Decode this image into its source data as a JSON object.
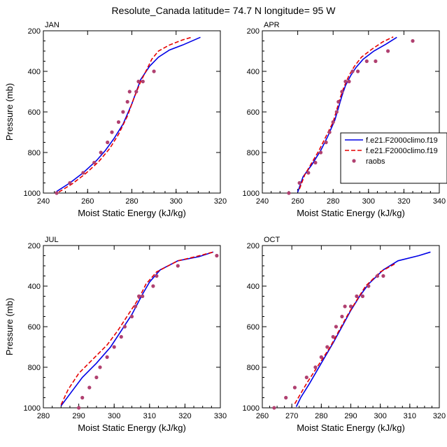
{
  "figure": {
    "title": "Resolute_Canada  latitude= 74.7 N longitude= 95 W",
    "colors": {
      "series_1": "#0000e6",
      "series_2": "#e60000",
      "raobs": "#b04070"
    }
  },
  "chart_data": [
    {
      "type": "line",
      "panel_label": "JAN",
      "xlabel": "Moist Static Energy (kJ/kg)",
      "ylabel": "Pressure (mb)",
      "xlim": [
        240,
        320
      ],
      "ylim": [
        1000,
        200
      ],
      "y_reversed": true,
      "xticks": [
        "240",
        "260",
        "280",
        "300",
        "320"
      ],
      "yticks": [
        "200",
        "400",
        "600",
        "800",
        "1000"
      ],
      "show_ylabel": true,
      "show_legend": false,
      "series": [
        {
          "style": "solid",
          "color": "#0000e6",
          "x": [
            246,
            252,
            258,
            264,
            268,
            272,
            276,
            280,
            284,
            288,
            292,
            297,
            303,
            311
          ],
          "y": [
            992,
            950,
            900,
            840,
            790,
            730,
            660,
            560,
            440,
            375,
            330,
            295,
            270,
            232
          ]
        },
        {
          "style": "dashed",
          "color": "#e60000",
          "x": [
            247,
            253,
            259,
            265,
            270,
            274,
            278,
            281,
            284,
            287,
            289,
            292,
            297,
            303,
            307
          ],
          "y": [
            995,
            955,
            905,
            845,
            780,
            710,
            620,
            530,
            450,
            385,
            340,
            300,
            270,
            245,
            232
          ]
        }
      ],
      "points": {
        "x": [
          246,
          252,
          258,
          263,
          266,
          269,
          271,
          274,
          276,
          278,
          279,
          282,
          283,
          285,
          290
        ],
        "y": [
          1000,
          950,
          900,
          850,
          800,
          750,
          700,
          650,
          600,
          550,
          500,
          500,
          450,
          450,
          400
        ]
      }
    },
    {
      "type": "line",
      "panel_label": "APR",
      "xlabel": "Moist Static Energy (kJ/kg)",
      "ylabel": "",
      "xlim": [
        240,
        340
      ],
      "ylim": [
        1000,
        200
      ],
      "y_reversed": true,
      "xticks": [
        "240",
        "260",
        "280",
        "300",
        "320",
        "340"
      ],
      "yticks": [
        "200",
        "400",
        "600",
        "800",
        "1000"
      ],
      "show_ylabel": false,
      "show_legend": true,
      "legend": {
        "location": "right",
        "labels": [
          "f.e21.F2000climo.f19",
          "f.e21.F2000climo.f19",
          "raobs"
        ]
      },
      "series": [
        {
          "style": "solid",
          "color": "#0000e6",
          "x": [
            260,
            263,
            268,
            273,
            277,
            281,
            283,
            285,
            287,
            290,
            293,
            297,
            303,
            310,
            316
          ],
          "y": [
            995,
            920,
            860,
            790,
            720,
            640,
            580,
            520,
            470,
            420,
            380,
            340,
            300,
            265,
            232
          ]
        },
        {
          "style": "dashed",
          "color": "#e60000",
          "x": [
            261,
            264,
            268,
            272,
            276,
            280,
            282,
            284,
            286,
            289,
            292,
            296,
            302,
            308,
            314
          ],
          "y": [
            980,
            910,
            850,
            790,
            720,
            650,
            590,
            530,
            480,
            420,
            375,
            330,
            290,
            255,
            230
          ]
        }
      ],
      "points": {
        "x": [
          255,
          261,
          266,
          270,
          273,
          276,
          278,
          280,
          282,
          283,
          285,
          287,
          289,
          291,
          294,
          299,
          304,
          311,
          325
        ],
        "y": [
          1000,
          950,
          900,
          850,
          800,
          750,
          700,
          650,
          600,
          550,
          500,
          450,
          450,
          400,
          400,
          350,
          350,
          300,
          250
        ]
      }
    },
    {
      "type": "line",
      "panel_label": "JUL",
      "xlabel": "Moist Static Energy (kJ/kg)",
      "ylabel": "Pressure (mb)",
      "xlim": [
        280,
        330
      ],
      "ylim": [
        1000,
        200
      ],
      "y_reversed": true,
      "xticks": [
        "280",
        "290",
        "300",
        "310",
        "320",
        "330"
      ],
      "yticks": [
        "200",
        "400",
        "600",
        "800",
        "1000"
      ],
      "show_ylabel": true,
      "show_legend": false,
      "series": [
        {
          "style": "solid",
          "color": "#0000e6",
          "x": [
            285,
            288,
            291,
            295,
            299,
            302,
            305,
            308,
            310,
            313,
            318,
            324,
            328
          ],
          "y": [
            990,
            920,
            850,
            780,
            700,
            620,
            540,
            440,
            380,
            320,
            275,
            255,
            232
          ]
        },
        {
          "style": "dashed",
          "color": "#e60000",
          "x": [
            285,
            287,
            290,
            294,
            298,
            301,
            304,
            307,
            309,
            312,
            318,
            323,
            328
          ],
          "y": [
            985,
            910,
            830,
            760,
            690,
            620,
            540,
            460,
            390,
            330,
            275,
            255,
            232
          ]
        }
      ],
      "points": {
        "x": [
          290,
          291,
          293,
          295,
          296,
          298,
          300,
          302,
          303,
          305,
          306,
          307,
          308,
          311,
          312,
          318,
          329
        ],
        "y": [
          1000,
          950,
          900,
          850,
          800,
          750,
          700,
          650,
          600,
          550,
          500,
          450,
          450,
          400,
          350,
          300,
          250
        ]
      }
    },
    {
      "type": "line",
      "panel_label": "OCT",
      "xlabel": "Moist Static Energy (kJ/kg)",
      "ylabel": "",
      "xlim": [
        260,
        320
      ],
      "ylim": [
        1000,
        200
      ],
      "y_reversed": true,
      "xticks": [
        "260",
        "270",
        "280",
        "290",
        "300",
        "310",
        "320"
      ],
      "yticks": [
        "200",
        "400",
        "600",
        "800",
        "1000"
      ],
      "show_ylabel": false,
      "show_legend": false,
      "series": [
        {
          "style": "solid",
          "color": "#0000e6",
          "x": [
            271.5,
            273,
            276,
            280,
            284,
            287,
            290,
            293,
            296,
            301,
            306,
            313,
            317
          ],
          "y": [
            995,
            950,
            880,
            780,
            680,
            600,
            520,
            450,
            390,
            320,
            275,
            250,
            232
          ]
        },
        {
          "style": "dashed",
          "color": "#e60000",
          "x": [
            271,
            273,
            275,
            279,
            283,
            286,
            289,
            292,
            295,
            300,
            305
          ],
          "y": [
            980,
            930,
            880,
            790,
            700,
            620,
            540,
            470,
            400,
            330,
            290
          ]
        }
      ],
      "points": {
        "x": [
          264,
          268,
          271,
          275,
          278,
          280,
          282,
          284,
          285,
          287,
          288,
          290,
          292,
          294,
          296,
          299,
          301
        ],
        "y": [
          1000,
          950,
          900,
          850,
          800,
          750,
          700,
          650,
          600,
          550,
          500,
          500,
          450,
          450,
          400,
          350,
          350
        ]
      }
    }
  ]
}
